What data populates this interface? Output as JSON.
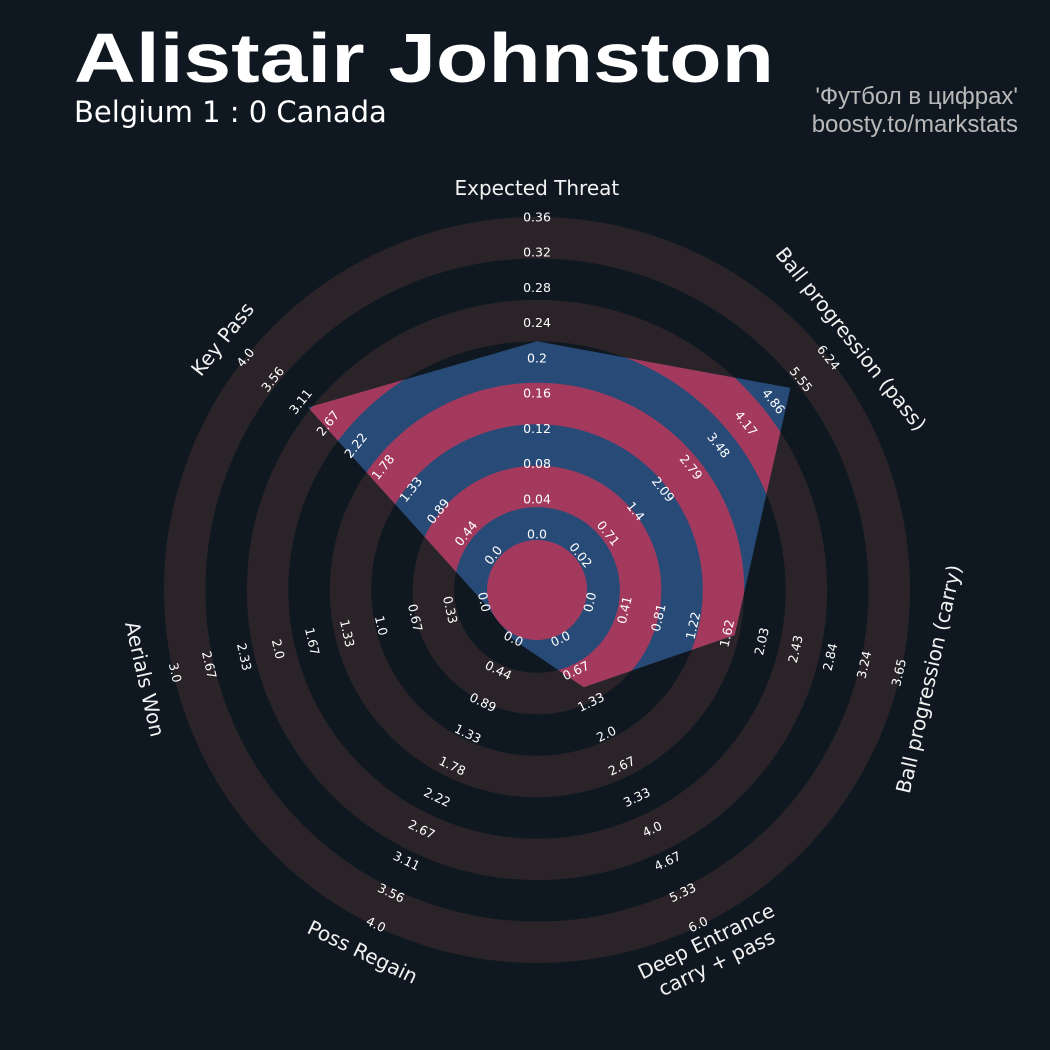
{
  "chart_data": {
    "type": "radar",
    "title": "Alistair Johnston",
    "subtitle": "Belgium 1 : 0 Canada",
    "credits": [
      "'Футбол в цифрах'",
      "boosty.to/markstats"
    ],
    "categories": [
      "Expected Threat",
      "Ball progression (pass)",
      "Ball progression (carry)",
      "Deep Entrance\ncarry + pass",
      "Poss Regain",
      "Aerials Won",
      "Key Pass"
    ],
    "values": [
      0.22,
      5.3,
      1.7,
      1.0,
      0,
      0,
      3.0
    ],
    "color": "#274a77",
    "highlight_color": "#a33a5e",
    "axes": [
      {
        "lim": [
          0,
          0.36
        ],
        "ticks": [
          {
            "value": 0,
            "label": "0.0"
          },
          0.04,
          0.08,
          0.12,
          0.16,
          0.2,
          0.24,
          0.28,
          0.32,
          0.36
        ]
      },
      {
        "lim": [
          0.02,
          6.24
        ],
        "ticks": [
          0.02,
          0.71,
          1.4,
          2.09,
          2.79,
          3.48,
          4.17,
          4.86,
          5.55,
          6.24
        ]
      },
      {
        "lim": [
          0,
          3.65
        ],
        "ticks": [
          {
            "value": 0,
            "label": "0.0"
          },
          0.41,
          0.81,
          1.22,
          1.62,
          2.03,
          2.43,
          2.84,
          3.24,
          3.65
        ]
      },
      {
        "lim": [
          0,
          6
        ],
        "ticks": [
          {
            "value": 0,
            "label": "0.0"
          },
          0.67,
          1.33,
          {
            "value": 2,
            "label": "2.0"
          },
          2.67,
          3.33,
          {
            "value": 4,
            "label": "4.0"
          },
          4.67,
          5.33,
          {
            "value": 6,
            "label": "6.0"
          }
        ]
      },
      {
        "lim": [
          0,
          4
        ],
        "ticks": [
          {
            "value": 0,
            "label": "0.0"
          },
          0.44,
          0.89,
          1.33,
          1.78,
          2.22,
          2.67,
          3.11,
          3.56,
          {
            "value": 4,
            "label": "4.0"
          }
        ]
      },
      {
        "lim": [
          0,
          3
        ],
        "ticks": [
          {
            "value": 0,
            "label": "0.0"
          },
          0.33,
          0.67,
          {
            "value": 1,
            "label": "1.0"
          },
          1.33,
          1.67,
          {
            "value": 2,
            "label": "2.0"
          },
          2.33,
          2.67,
          {
            "value": 3,
            "label": "3.0"
          }
        ]
      },
      {
        "lim": [
          0,
          4
        ],
        "ticks": [
          {
            "value": 0,
            "label": "0.0"
          },
          0.44,
          0.89,
          1.33,
          1.78,
          2.22,
          2.67,
          3.11,
          3.56,
          {
            "value": 4,
            "label": "4.0"
          }
        ]
      }
    ]
  }
}
